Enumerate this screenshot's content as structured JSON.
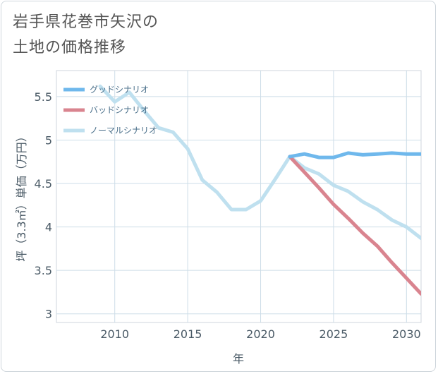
{
  "title_line1": "岩手県花巻市矢沢の",
  "title_line2": "土地の価格推移",
  "chart_data": {
    "type": "line",
    "title": "岩手県花巻市矢沢の土地の価格推移",
    "xlabel": "年",
    "ylabel": "坪（3.3㎡）単価（万円）",
    "xlim": [
      2006,
      2031
    ],
    "ylim": [
      2.9,
      5.8
    ],
    "xticks": [
      2010,
      2015,
      2020,
      2025,
      2030
    ],
    "yticks": [
      3,
      3.5,
      4,
      4.5,
      5,
      5.5
    ],
    "ytick_labels": [
      "3",
      "3.5",
      "4",
      "4.5",
      "5",
      "5.5"
    ],
    "grid": true,
    "legend_position": "top-left",
    "series": [
      {
        "name": "グッドシナリオ",
        "color": "#6fb8ec",
        "x": [
          2022,
          2023,
          2024,
          2025,
          2026,
          2027,
          2028,
          2029,
          2030,
          2031
        ],
        "y": [
          4.81,
          4.84,
          4.8,
          4.8,
          4.85,
          4.83,
          4.84,
          4.85,
          4.84,
          4.84
        ]
      },
      {
        "name": "バッドシナリオ",
        "color": "#d9848f",
        "x": [
          2022,
          2023,
          2024,
          2025,
          2026,
          2027,
          2028,
          2029,
          2030,
          2031
        ],
        "y": [
          4.81,
          4.63,
          4.45,
          4.26,
          4.1,
          3.93,
          3.78,
          3.59,
          3.41,
          3.23
        ]
      },
      {
        "name": "ノーマルシナリオ",
        "color": "#bfe0ef",
        "x": [
          2009,
          2010,
          2011,
          2012,
          2013,
          2014,
          2015,
          2016,
          2017,
          2018,
          2019,
          2020,
          2021,
          2022,
          2023,
          2024,
          2025,
          2026,
          2027,
          2028,
          2029,
          2030,
          2031
        ],
        "y": [
          5.62,
          5.44,
          5.55,
          5.34,
          5.14,
          5.09,
          4.9,
          4.54,
          4.4,
          4.2,
          4.2,
          4.3,
          4.55,
          4.81,
          4.68,
          4.61,
          4.48,
          4.41,
          4.29,
          4.2,
          4.08,
          4.0,
          3.87
        ]
      }
    ]
  }
}
